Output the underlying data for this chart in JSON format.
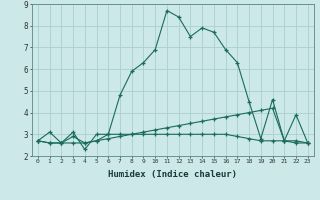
{
  "xlabel": "Humidex (Indice chaleur)",
  "background_color": "#cce8e8",
  "grid_color": "#aad0d0",
  "line_color": "#1a6b5a",
  "xlim": [
    -0.5,
    23.5
  ],
  "ylim": [
    2,
    9
  ],
  "xticks": [
    0,
    1,
    2,
    3,
    4,
    5,
    6,
    7,
    8,
    9,
    10,
    11,
    12,
    13,
    14,
    15,
    16,
    17,
    18,
    19,
    20,
    21,
    22,
    23
  ],
  "yticks": [
    2,
    3,
    4,
    5,
    6,
    7,
    8,
    9
  ],
  "line1_x": [
    0,
    1,
    2,
    3,
    4,
    5,
    6,
    7,
    8,
    9,
    10,
    11,
    12,
    13,
    14,
    15,
    16,
    17,
    18,
    19,
    20,
    21,
    22,
    23
  ],
  "line1_y": [
    2.7,
    3.1,
    2.6,
    3.1,
    2.3,
    3.0,
    3.0,
    4.8,
    5.9,
    6.3,
    6.9,
    8.7,
    8.4,
    7.5,
    7.9,
    7.7,
    6.9,
    6.3,
    4.5,
    2.8,
    4.6,
    2.7,
    3.9,
    2.6
  ],
  "line2_x": [
    0,
    1,
    2,
    3,
    4,
    5,
    6,
    7,
    8,
    9,
    10,
    11,
    12,
    13,
    14,
    15,
    16,
    17,
    18,
    19,
    20,
    21,
    22,
    23
  ],
  "line2_y": [
    2.7,
    2.6,
    2.6,
    2.6,
    2.6,
    2.7,
    2.8,
    2.9,
    3.0,
    3.1,
    3.2,
    3.3,
    3.4,
    3.5,
    3.6,
    3.7,
    3.8,
    3.9,
    4.0,
    4.1,
    4.2,
    2.7,
    2.7,
    2.6
  ],
  "line3_x": [
    0,
    1,
    2,
    3,
    4,
    5,
    6,
    7,
    8,
    9,
    10,
    11,
    12,
    13,
    14,
    15,
    16,
    17,
    18,
    19,
    20,
    21,
    22,
    23
  ],
  "line3_y": [
    2.7,
    2.6,
    2.6,
    2.9,
    2.6,
    2.7,
    3.0,
    3.0,
    3.0,
    3.0,
    3.0,
    3.0,
    3.0,
    3.0,
    3.0,
    3.0,
    3.0,
    2.9,
    2.8,
    2.7,
    2.7,
    2.7,
    2.6,
    2.6
  ]
}
